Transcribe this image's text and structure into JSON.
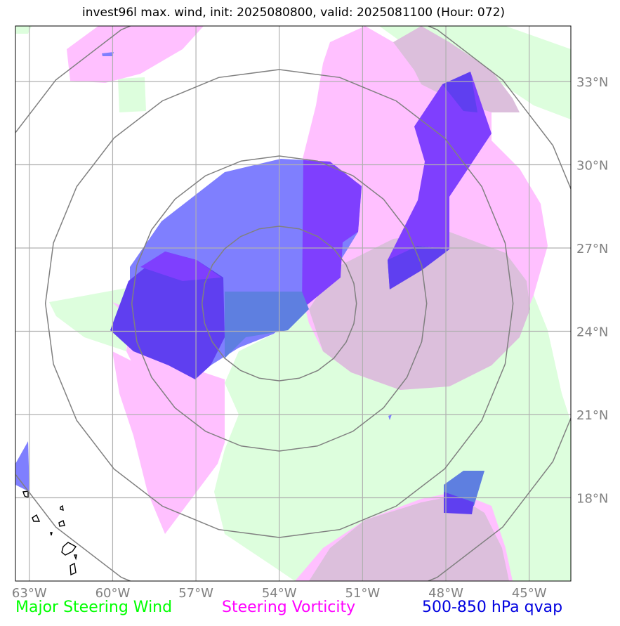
{
  "title": "invest96l max. wind, init: 2025080800, valid: 2025081100 (Hour: 072)",
  "map": {
    "lon_ticks": [
      "63°W",
      "60°W",
      "57°W",
      "54°W",
      "51°W",
      "48°W",
      "45°W"
    ],
    "lat_ticks": [
      "33°N",
      "30°N",
      "27°N",
      "24°N",
      "21°N",
      "18°N"
    ],
    "extent": {
      "lon_min": -63.5,
      "lon_max": -43.5,
      "lat_min": 15.0,
      "lat_max": 35.0
    },
    "range_rings_center": {
      "lon": -54.0,
      "lat": 25.0
    },
    "colors": {
      "steering_wind": "#ddfedd",
      "steering_vorticity": "#ffc0ff",
      "overlap_wind_vorticity": "#dcbfdc",
      "qvap": "#7f7ffe",
      "qvap_dark": "#5f3ff0",
      "qvap_purple": "#7f3ffe",
      "qvap_wind": "#5e7fe0",
      "gridline": "#b0b0b0",
      "ring": "#808080",
      "tick_text": "#808080"
    }
  },
  "legend": {
    "steering_wind": {
      "label": "Major Steering Wind",
      "color": "#00ff00"
    },
    "steering_vorticity": {
      "label": "Steering Vorticity",
      "color": "#ff00ff"
    },
    "qvap": {
      "label": "500-850 hPa qvap",
      "color": "#0000e0"
    }
  }
}
